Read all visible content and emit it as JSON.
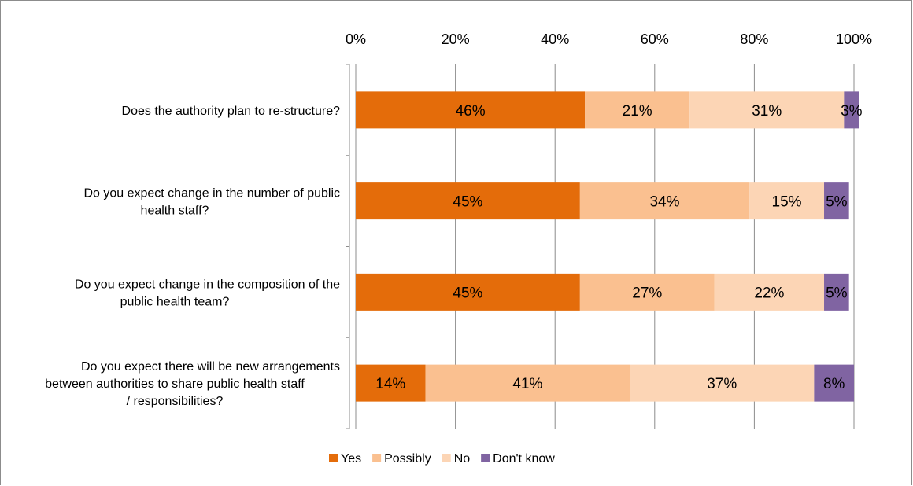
{
  "chart_data": {
    "type": "bar",
    "orientation": "horizontal",
    "stacked": true,
    "categories": [
      [
        "Does the authority plan to re-structure?"
      ],
      [
        "Do you expect change in the number of public",
        "health staff?"
      ],
      [
        "Do you expect change in the composition of the",
        "public health team?"
      ],
      [
        "Do you expect there will be new arrangements",
        "between authorities to share public health staff",
        "/ responsibilities?"
      ]
    ],
    "series": [
      {
        "name": "Yes",
        "color": "#E46C0A",
        "values": [
          46,
          45,
          45,
          14
        ],
        "labels": [
          "46%",
          "45%",
          "45%",
          "14%"
        ]
      },
      {
        "name": "Possibly",
        "color": "#FAC090",
        "values": [
          21,
          34,
          27,
          41
        ],
        "labels": [
          "21%",
          "34%",
          "27%",
          "41%"
        ]
      },
      {
        "name": "No",
        "color": "#FCD5B5",
        "values": [
          31,
          15,
          22,
          37
        ],
        "labels": [
          "31%",
          "15%",
          "22%",
          "37%"
        ]
      },
      {
        "name": "Don't know",
        "color": "#8064A2",
        "values": [
          3,
          5,
          5,
          8
        ],
        "labels": [
          "3%",
          "5%",
          "5%",
          "8%"
        ]
      }
    ],
    "xlim": [
      0,
      100
    ],
    "xticks": [
      "0%",
      "20%",
      "40%",
      "60%",
      "80%",
      "100%"
    ],
    "grid": true,
    "legend_position": "bottom"
  }
}
